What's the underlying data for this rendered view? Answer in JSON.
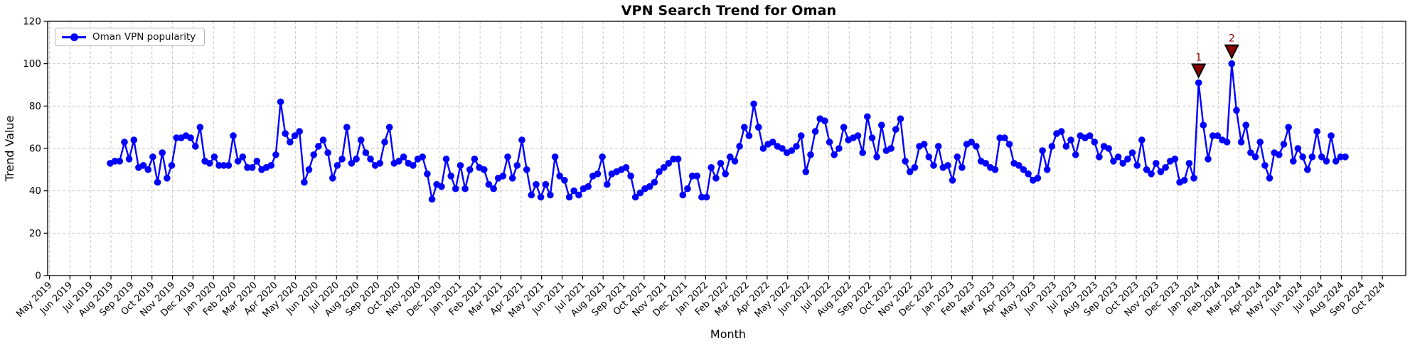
{
  "title": "VPN Search Trend for Oman",
  "xlabel": "Month",
  "ylabel": "Trend Value",
  "legend": {
    "label": "Oman VPN popularity"
  },
  "colors": {
    "line": "#0000ff",
    "marker": "#0000ff",
    "annotation": "#8b0000",
    "grid": "#c9c9c9",
    "axis": "#000000",
    "background": "#ffffff"
  },
  "chart_data": {
    "type": "line",
    "series_name": "Oman VPN popularity",
    "x_tick_labels": [
      "May 2019",
      "Jun 2019",
      "Jul 2019",
      "Aug 2019",
      "Sep 2019",
      "Oct 2019",
      "Nov 2019",
      "Dec 2019",
      "Jan 2020",
      "Feb 2020",
      "Mar 2020",
      "Apr 2020",
      "May 2020",
      "Jun 2020",
      "Jul 2020",
      "Aug 2020",
      "Sep 2020",
      "Oct 2020",
      "Nov 2020",
      "Dec 2020",
      "Jan 2021",
      "Feb 2021",
      "Mar 2021",
      "Apr 2021",
      "May 2021",
      "Jun 2021",
      "Jul 2021",
      "Aug 2021",
      "Sep 2021",
      "Oct 2021",
      "Nov 2021",
      "Dec 2021",
      "Jan 2022",
      "Feb 2022",
      "Mar 2022",
      "Apr 2022",
      "May 2022",
      "Jun 2022",
      "Jul 2022",
      "Aug 2022",
      "Sep 2022",
      "Oct 2022",
      "Nov 2022",
      "Dec 2022",
      "Jan 2023",
      "Feb 2023",
      "Mar 2023",
      "Apr 2023",
      "May 2023",
      "Jun 2023",
      "Jul 2023",
      "Aug 2023",
      "Sep 2023",
      "Oct 2023",
      "Nov 2023",
      "Dec 2023",
      "Jan 2024",
      "Feb 2024",
      "Mar 2024",
      "Apr 2024",
      "May 2024",
      "Jun 2024",
      "Jul 2024",
      "Aug 2024",
      "Sep 2024",
      "Oct 2024"
    ],
    "y_ticks": [
      0,
      20,
      40,
      60,
      80,
      100,
      120
    ],
    "ylim": [
      0,
      120
    ],
    "grid": true,
    "legend_position": "upper left",
    "first_point_label": "Aug 2019",
    "last_point_label": "Aug 2024",
    "values": [
      53,
      54,
      54,
      63,
      55,
      64,
      51,
      52,
      50,
      56,
      44,
      58,
      46,
      52,
      65,
      65,
      66,
      65,
      61,
      70,
      54,
      53,
      56,
      52,
      52,
      52,
      66,
      54,
      56,
      51,
      51,
      54,
      50,
      51,
      52,
      57,
      82,
      67,
      63,
      66,
      68,
      44,
      50,
      57,
      61,
      64,
      58,
      46,
      52,
      55,
      70,
      53,
      55,
      64,
      58,
      55,
      52,
      53,
      63,
      70,
      53,
      54,
      56,
      53,
      52,
      55,
      56,
      48,
      36,
      43,
      42,
      55,
      47,
      41,
      52,
      41,
      50,
      55,
      51,
      50,
      43,
      41,
      46,
      47,
      56,
      46,
      52,
      64,
      50,
      38,
      43,
      37,
      43,
      38,
      56,
      47,
      45,
      37,
      40,
      38,
      41,
      42,
      47,
      48,
      56,
      43,
      48,
      49,
      50,
      51,
      47,
      37,
      39,
      41,
      42,
      44,
      49,
      51,
      53,
      55,
      55,
      38,
      41,
      47,
      47,
      37,
      37,
      51,
      46,
      53,
      48,
      56,
      54,
      61,
      70,
      66,
      81,
      70,
      60,
      62,
      63,
      61,
      60,
      58,
      59,
      61,
      66,
      49,
      57,
      68,
      74,
      73,
      63,
      57,
      60,
      70,
      64,
      65,
      66,
      58,
      75,
      65,
      56,
      71,
      59,
      60,
      69,
      74,
      54,
      49,
      51,
      61,
      62,
      56,
      52,
      61,
      51,
      52,
      45,
      56,
      51,
      62,
      63,
      61,
      54,
      53,
      51,
      50,
      65,
      65,
      62,
      53,
      52,
      50,
      48,
      45,
      46,
      59,
      50,
      61,
      67,
      68,
      61,
      64,
      57,
      66,
      65,
      66,
      63,
      56,
      61,
      60,
      54,
      56,
      53,
      55,
      58,
      52,
      64,
      50,
      48,
      53,
      49,
      51,
      54,
      55,
      44,
      45,
      53,
      46,
      91,
      71,
      55,
      66,
      66,
      64,
      63,
      100,
      78,
      63,
      71,
      58,
      56,
      63,
      52,
      46,
      58,
      57,
      62,
      70,
      54,
      60,
      56,
      50,
      56,
      68,
      56,
      54,
      66,
      54,
      56,
      56
    ],
    "annotations": [
      {
        "label": "1",
        "index": 230,
        "value": 91
      },
      {
        "label": "2",
        "index": 237,
        "value": 100
      }
    ]
  }
}
